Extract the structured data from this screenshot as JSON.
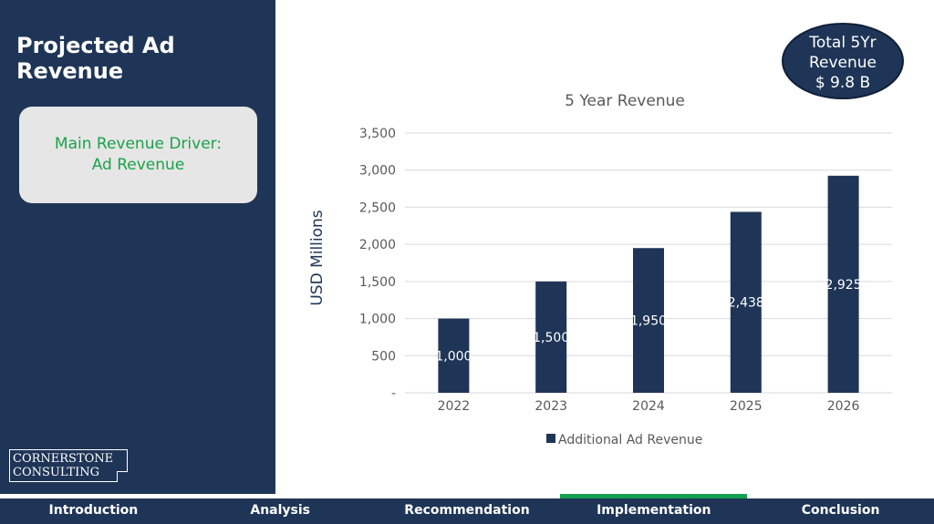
{
  "sidebar": {
    "title": "Projected Ad Revenue",
    "driver_line1": "Main Revenue Driver:",
    "driver_line2": "Ad Revenue",
    "logo_line1": "CORNERSTONE",
    "logo_line2": "CONSULTING"
  },
  "badge": {
    "line1": "Total 5Yr",
    "line2": "Revenue",
    "line3": "$ 9.8 B"
  },
  "nav": {
    "items": [
      "Introduction",
      "Analysis",
      "Recommendation",
      "Implementation",
      "Conclusion"
    ],
    "active": "Implementation"
  },
  "colors": {
    "sidebar_bg": "#1f3557",
    "bar": "#1f3557",
    "accent_green": "#1aa34a",
    "gridline": "#d9d9d9",
    "axis_text": "#595959"
  },
  "chart_data": {
    "type": "bar",
    "title": "5 Year Revenue",
    "ylabel": "USD Millions",
    "xlabel": "",
    "categories": [
      "2022",
      "2023",
      "2024",
      "2025",
      "2026"
    ],
    "series": [
      {
        "name": "Additional Ad Revenue",
        "values": [
          1000,
          1500,
          1950,
          2438,
          2925
        ]
      }
    ],
    "data_labels": [
      "1,000",
      "1,500",
      "1,950",
      "2,438",
      "2,925"
    ],
    "ylim": [
      0,
      3500
    ],
    "yticks": [
      0,
      500,
      1000,
      1500,
      2000,
      2500,
      3000,
      3500
    ],
    "ytick_labels": [
      "-",
      "500",
      "1,000",
      "1,500",
      "2,000",
      "2,500",
      "3,000",
      "3,500"
    ],
    "grid": true,
    "legend": "bottom"
  }
}
